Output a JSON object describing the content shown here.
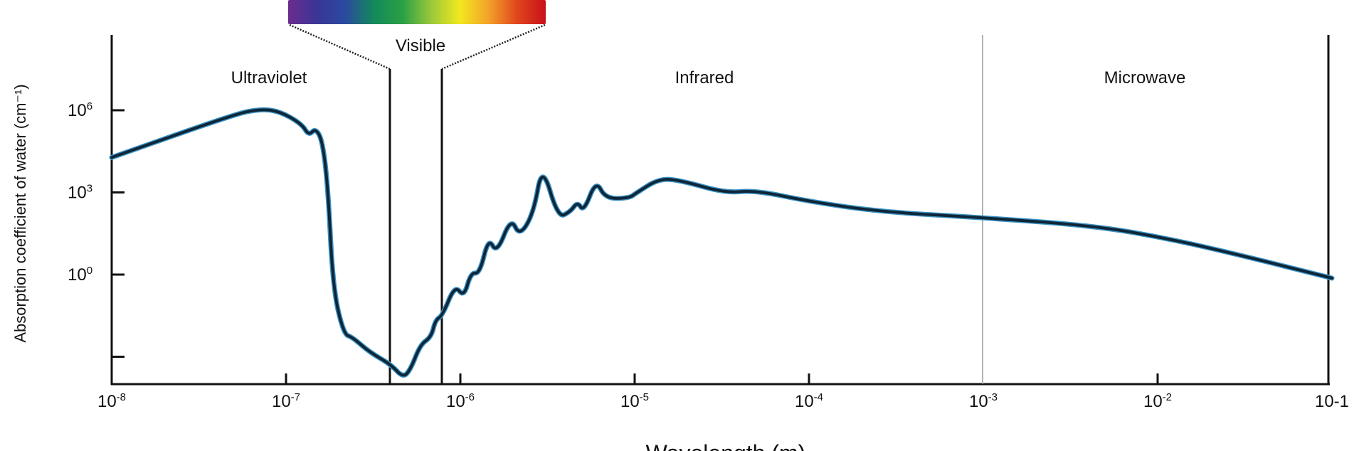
{
  "chart_data": {
    "type": "line",
    "title": "",
    "xlabel": "Wavelength (m)",
    "ylabel": "Absorption coefficient of water (cm⁻¹)",
    "x_scale": "log",
    "y_scale": "log",
    "xlim": [
      1e-08,
      0.1
    ],
    "ylim": [
      0.0001,
      560000000.0
    ],
    "grid": false,
    "x_ticks": [
      {
        "value": 1e-08,
        "base": "10",
        "exp": "-8"
      },
      {
        "value": 1e-07,
        "base": "10",
        "exp": "-7"
      },
      {
        "value": 1e-06,
        "base": "10",
        "exp": "-6"
      },
      {
        "value": 1e-05,
        "base": "10",
        "exp": "-5"
      },
      {
        "value": 0.0001,
        "base": "10",
        "exp": "-4"
      },
      {
        "value": 0.001,
        "base": "10",
        "exp": "-3"
      },
      {
        "value": 0.01,
        "base": "10",
        "exp": "-2"
      },
      {
        "value": 0.1,
        "base": "10-1",
        "exp": ""
      }
    ],
    "y_ticks": [
      {
        "value": 1000000.0,
        "base": "10",
        "exp": "6"
      },
      {
        "value": 1000.0,
        "base": "10",
        "exp": "3"
      },
      {
        "value": 1,
        "base": "10",
        "exp": "0"
      },
      {
        "value": 0.001,
        "base": "",
        "exp": ""
      }
    ],
    "regions": [
      {
        "label": "Ultraviolet",
        "from": 1e-08,
        "to": 4e-07
      },
      {
        "label": "Visible",
        "from": 4e-07,
        "to": 7.9e-07
      },
      {
        "label": "Infrared",
        "from": 7.9e-07,
        "to": 0.001
      },
      {
        "label": "Microwave",
        "from": 0.001,
        "to": 0.1
      }
    ],
    "spectrum_colors": [
      "#6b2c8e",
      "#3a3596",
      "#2a4aa0",
      "#138a5a",
      "#2aa045",
      "#9cc83a",
      "#f2e81e",
      "#f3a22a",
      "#e0461c",
      "#c8101a"
    ],
    "line_color": "#0e2638",
    "line_edge_color": "#3b93c4",
    "series": [
      {
        "x": [
          1e-08,
          4.9e-08,
          6.9e-08,
          9.1e-08,
          1.23e-07,
          1.35e-07,
          1.48e-07,
          1.62e-07,
          1.74e-07,
          1.86e-07,
          2.14e-07,
          2.4e-07,
          3e-07,
          4e-07,
          4.7e-07,
          5.2e-07,
          5.9e-07,
          6.8e-07,
          7.2e-07,
          7.9e-07,
          9.3e-07,
          1.05e-06,
          1.15e-06,
          1.29e-06,
          1.45e-06,
          1.62e-06,
          1.95e-06,
          2.19e-06,
          2.63e-06,
          2.95e-06,
          3.63e-06,
          4.27e-06,
          4.7e-06,
          5.1e-06,
          6e-06,
          6.8e-06,
          9.3e-06,
          1.02e-05,
          1.38e-05,
          1.82e-05,
          3.3e-05,
          4.9e-05,
          0.000102,
          0.00026,
          0.001,
          0.0045,
          0.012,
          0.032,
          0.1
        ],
        "y": [
          19000.0,
          660000.0,
          1100000.0,
          950000.0,
          320000.0,
          120000.0,
          220000.0,
          74000.0,
          1500.0,
          0.32,
          0.0066,
          0.0052,
          0.0015,
          0.00052,
          0.00017,
          0.00036,
          0.0028,
          0.0052,
          0.022,
          0.032,
          0.41,
          0.15,
          1.2,
          1.07,
          22,
          5.9,
          120,
          25,
          174,
          10700.0,
          120,
          195,
          457,
          195,
          2800,
          590,
          620,
          950,
          3200,
          2800,
          950,
          1200,
          460,
          195,
          120,
          59,
          19.5,
          4.6,
          0.74
        ]
      }
    ]
  }
}
